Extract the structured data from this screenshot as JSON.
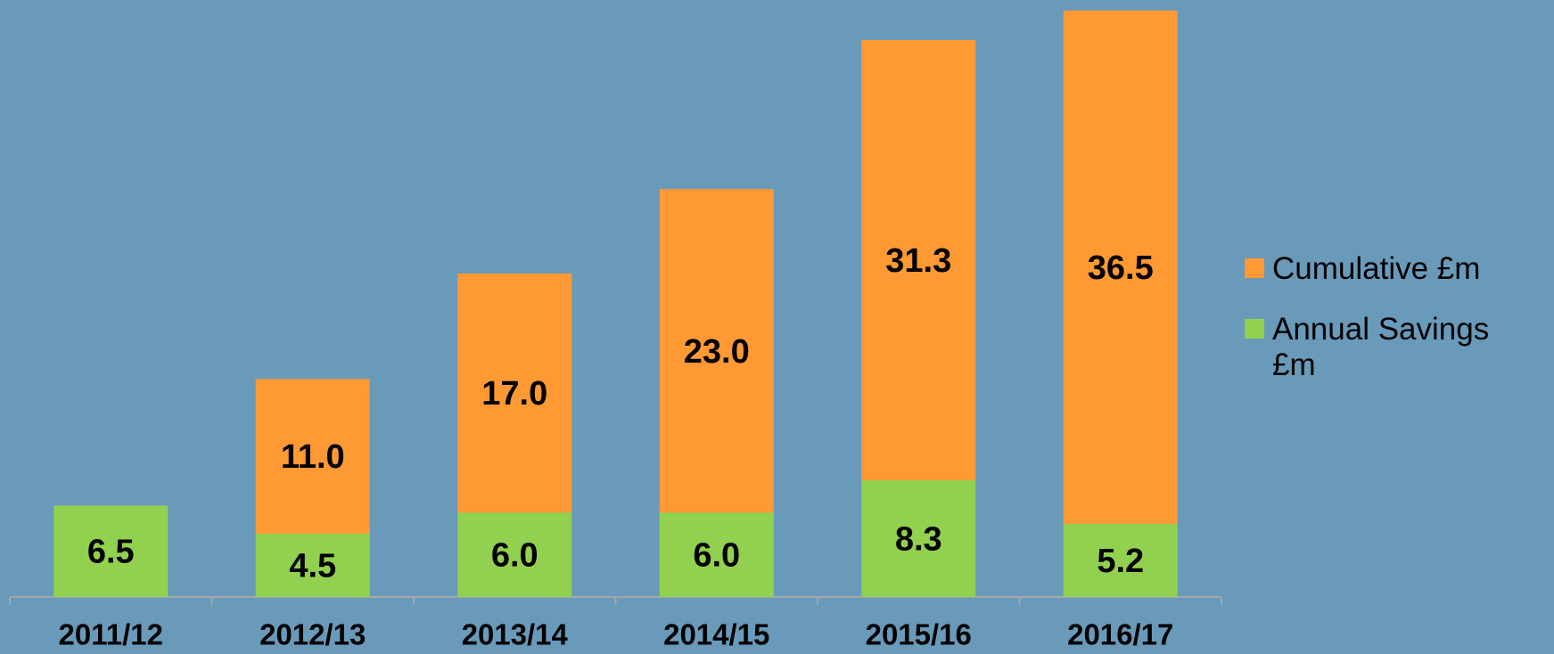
{
  "chart_data": {
    "type": "bar",
    "stacked": true,
    "categories": [
      "2011/12",
      "2012/13",
      "2013/14",
      "2014/15",
      "2015/16",
      "2016/17"
    ],
    "series": [
      {
        "name": "Annual Savings £m",
        "color": "#92d050",
        "values": [
          6.5,
          4.5,
          6.0,
          6.0,
          8.3,
          5.2
        ],
        "value_labels": [
          "6.5",
          "4.5",
          "6.0",
          "6.0",
          "8.3",
          "5.2"
        ]
      },
      {
        "name": "Cumulative £m",
        "color": "#ff9933",
        "values": [
          null,
          11.0,
          17.0,
          23.0,
          31.3,
          36.5
        ],
        "value_labels": [
          null,
          "11.0",
          "17.0",
          "23.0",
          "31.3",
          "36.5"
        ]
      }
    ],
    "ylim": [
      0,
      42
    ],
    "legend": "right"
  }
}
